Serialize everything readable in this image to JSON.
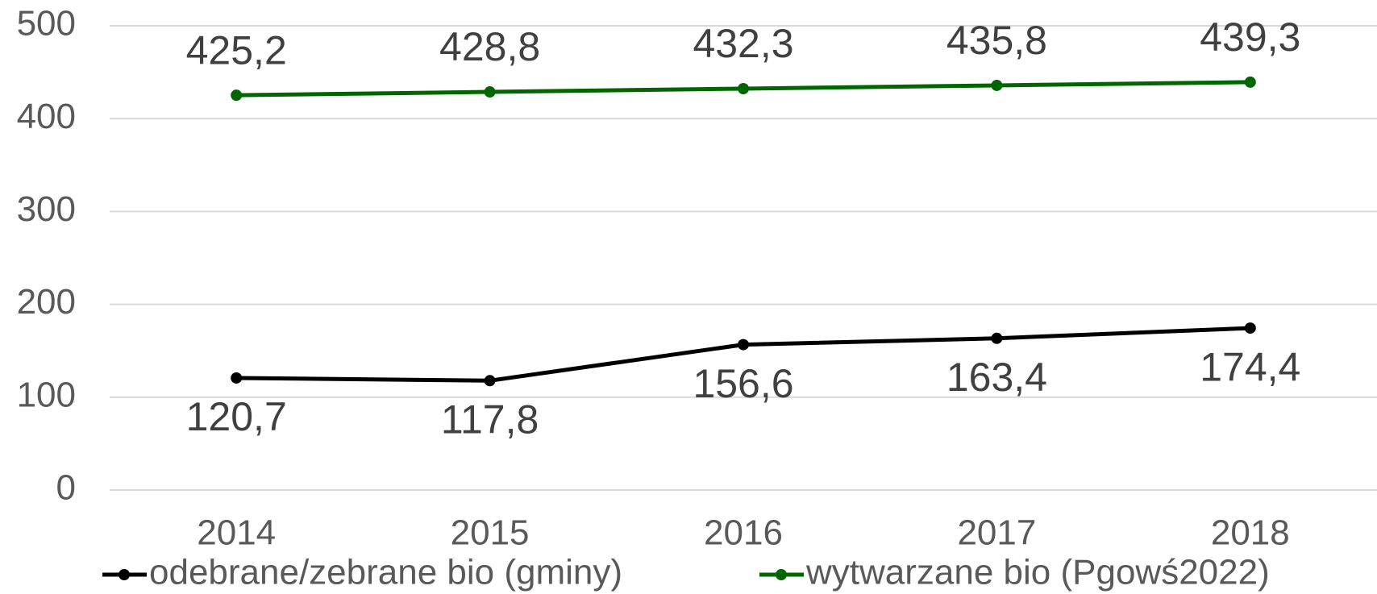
{
  "chart_data": {
    "type": "line",
    "categories": [
      "2014",
      "2015",
      "2016",
      "2017",
      "2018"
    ],
    "series": [
      {
        "name": "odebrane/zebrane bio (gminy)",
        "color": "#000000",
        "values": [
          120.7,
          117.8,
          156.6,
          163.4,
          174.4
        ],
        "value_labels": [
          "120,7",
          "117,8",
          "156,6",
          "163,4",
          "174,4"
        ],
        "label_position": "below"
      },
      {
        "name": "wytwarzane bio (Pgowś2022)",
        "color": "#006600",
        "values": [
          425.2,
          428.8,
          432.3,
          435.8,
          439.3
        ],
        "value_labels": [
          "425,2",
          "428,8",
          "432,3",
          "435,8",
          "439,3"
        ],
        "label_position": "above"
      }
    ],
    "ylim": [
      0,
      500
    ],
    "yticks": [
      0,
      100,
      200,
      300,
      400,
      500
    ],
    "grid": true,
    "legend": "bottom"
  }
}
